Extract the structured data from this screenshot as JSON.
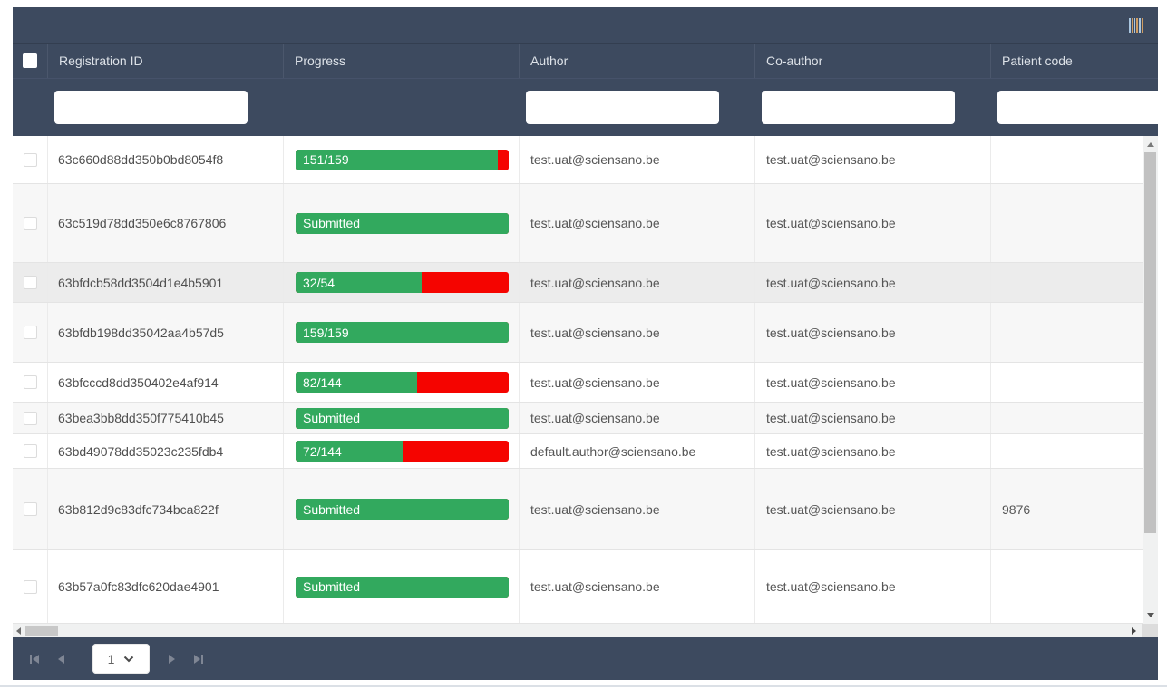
{
  "grid": {
    "toolbar": {
      "column_menu_icon": "columns-icon"
    },
    "columns": [
      {
        "key": "registration_id",
        "label": "Registration ID",
        "filterable": true
      },
      {
        "key": "progress",
        "label": "Progress",
        "filterable": false
      },
      {
        "key": "author",
        "label": "Author",
        "filterable": true
      },
      {
        "key": "co_author",
        "label": "Co-author",
        "filterable": true
      },
      {
        "key": "patient_code",
        "label": "Patient code",
        "filterable": true
      }
    ],
    "select_all_checked": false,
    "filters": {
      "registration_id": {
        "value": "",
        "placeholder": ""
      },
      "author": {
        "value": "",
        "placeholder": ""
      },
      "co_author": {
        "value": "",
        "placeholder": ""
      },
      "patient_code": {
        "value": "",
        "placeholder": ""
      }
    },
    "rows": [
      {
        "checked": false,
        "registration_id": "63c660d88dd350b0bd8054f8",
        "progress": {
          "label": "151/159",
          "percent": 95
        },
        "author": "test.uat@sciensano.be",
        "co_author": "test.uat@sciensano.be",
        "patient_code": ""
      },
      {
        "checked": false,
        "registration_id": "63c519d78dd350e6c8767806",
        "progress": {
          "label": "Submitted",
          "percent": 100
        },
        "author": "test.uat@sciensano.be",
        "co_author": "test.uat@sciensano.be",
        "patient_code": ""
      },
      {
        "checked": false,
        "registration_id": "63bfdcb58dd3504d1e4b5901",
        "progress": {
          "label": "32/54",
          "percent": 59
        },
        "author": "test.uat@sciensano.be",
        "co_author": "test.uat@sciensano.be",
        "patient_code": ""
      },
      {
        "checked": false,
        "registration_id": "63bfdb198dd35042aa4b57d5",
        "progress": {
          "label": "159/159",
          "percent": 100
        },
        "author": "test.uat@sciensano.be",
        "co_author": "test.uat@sciensano.be",
        "patient_code": ""
      },
      {
        "checked": false,
        "registration_id": "63bfcccd8dd350402e4af914",
        "progress": {
          "label": "82/144",
          "percent": 57
        },
        "author": "test.uat@sciensano.be",
        "co_author": "test.uat@sciensano.be",
        "patient_code": ""
      },
      {
        "checked": false,
        "registration_id": "63bea3bb8dd350f775410b45",
        "progress": {
          "label": "Submitted",
          "percent": 100
        },
        "author": "test.uat@sciensano.be",
        "co_author": "test.uat@sciensano.be",
        "patient_code": ""
      },
      {
        "checked": false,
        "registration_id": "63bd49078dd35023c235fdb4",
        "progress": {
          "label": "72/144",
          "percent": 50
        },
        "author": "default.author@sciensano.be",
        "co_author": "test.uat@sciensano.be",
        "patient_code": ""
      },
      {
        "checked": false,
        "registration_id": "63b812d9c83dfc734bca822f",
        "progress": {
          "label": "Submitted",
          "percent": 100
        },
        "author": "test.uat@sciensano.be",
        "co_author": "test.uat@sciensano.be",
        "patient_code": "9876"
      },
      {
        "checked": false,
        "registration_id": "63b57a0fc83dfc620dae4901",
        "progress": {
          "label": "Submitted",
          "percent": 100
        },
        "author": "test.uat@sciensano.be",
        "co_author": "test.uat@sciensano.be",
        "patient_code": ""
      }
    ],
    "pager": {
      "page": "1",
      "icons": [
        "first-page-icon",
        "previous-page-icon",
        "page-select-dropdown",
        "next-page-icon",
        "last-page-icon"
      ]
    }
  },
  "colors": {
    "header_bg": "#3d4a5f",
    "progress_done": "#32a95e",
    "progress_remaining": "#f50400",
    "alt_row_bg": "#f7f7f7",
    "hover_row_bg": "#ececec"
  }
}
